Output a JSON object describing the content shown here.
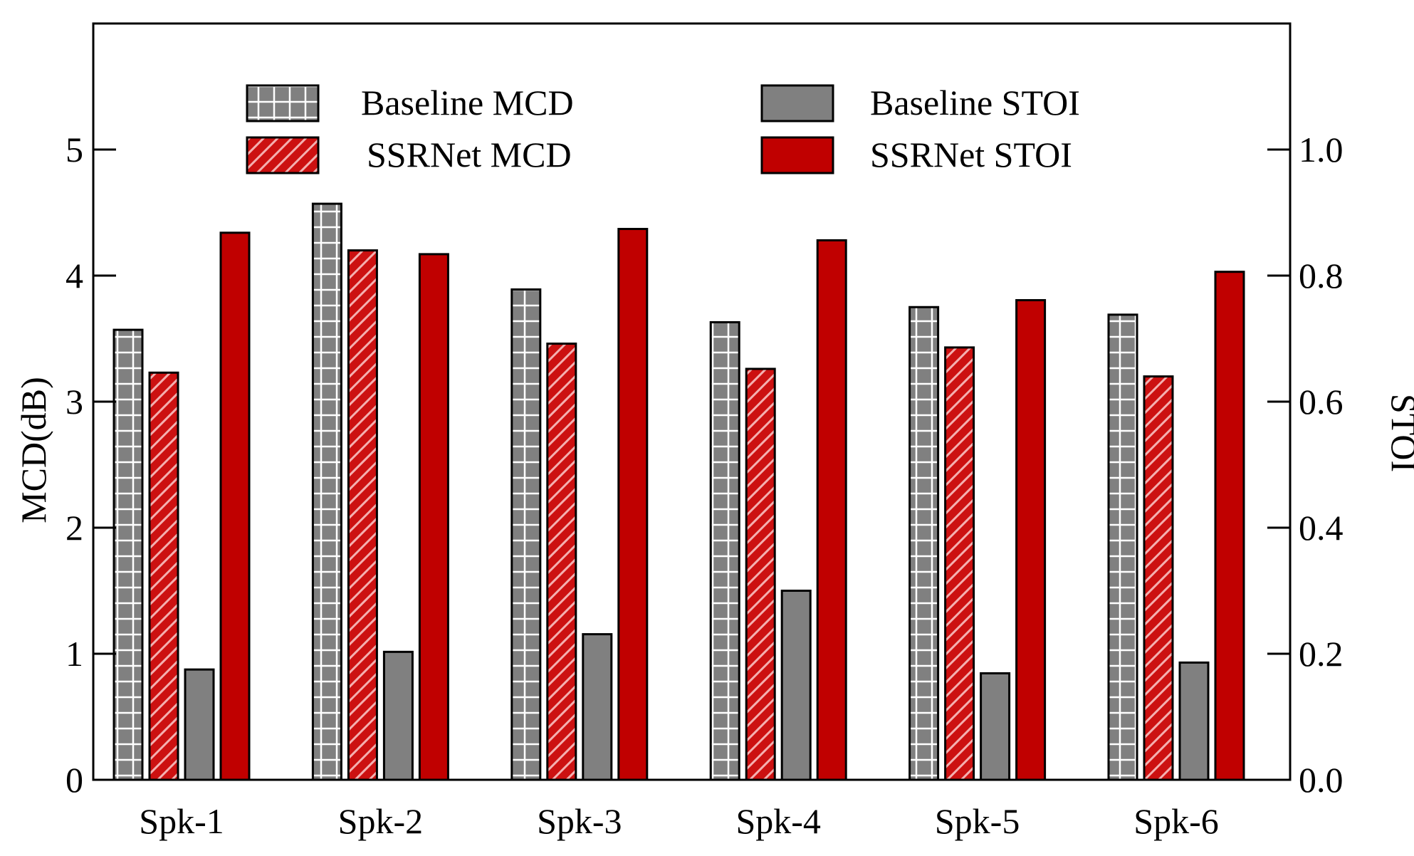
{
  "chart_data": {
    "type": "bar",
    "categories": [
      "Spk-1",
      "Spk-2",
      "Spk-3",
      "Spk-4",
      "Spk-5",
      "Spk-6"
    ],
    "series": [
      {
        "name": "Baseline MCD",
        "axis": "left",
        "values": [
          3.57,
          4.57,
          3.89,
          3.63,
          3.75,
          3.69
        ],
        "color": "#808080",
        "pattern": "grid"
      },
      {
        "name": "SSRNet MCD",
        "axis": "left",
        "values": [
          3.23,
          4.2,
          3.46,
          3.26,
          3.43,
          3.2
        ],
        "color": "#cc0000",
        "pattern": "diagonal"
      },
      {
        "name": "Baseline STOI",
        "axis": "right",
        "values": [
          0.175,
          0.203,
          0.231,
          0.3,
          0.169,
          0.186
        ],
        "color": "#808080",
        "pattern": "solid"
      },
      {
        "name": "SSRNet STOI",
        "axis": "right",
        "values": [
          0.868,
          0.834,
          0.874,
          0.856,
          0.761,
          0.806
        ],
        "color": "#c00000",
        "pattern": "solid"
      }
    ],
    "ylabel": "MCD(dB)",
    "y2label": "STOI",
    "ylim": [
      0,
      6
    ],
    "y2lim": [
      0,
      1.2
    ],
    "yticks": [
      "0",
      "1",
      "2",
      "3",
      "4",
      "5"
    ],
    "y2ticks": [
      "0.0",
      "0.2",
      "0.4",
      "0.6",
      "0.8",
      "1.0"
    ],
    "grid": false,
    "legend_position": "top"
  }
}
